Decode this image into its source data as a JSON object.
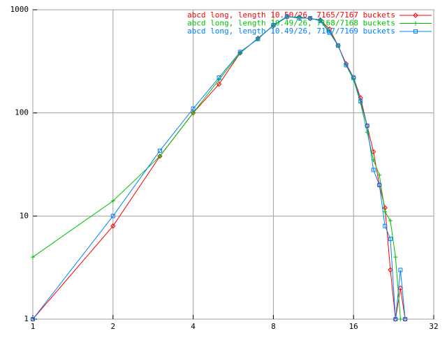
{
  "chart_data": {
    "type": "line",
    "xscale": "log",
    "yscale": "log",
    "grid": true,
    "legend": "top-right",
    "x": [
      1,
      2,
      3,
      4,
      5,
      6,
      7,
      8,
      9,
      10,
      11,
      12,
      13,
      14,
      15,
      16,
      17,
      18,
      19,
      20,
      21,
      22,
      23,
      24,
      25
    ],
    "xlim": [
      1,
      32
    ],
    "xticks": [
      1,
      2,
      4,
      8,
      16,
      32
    ],
    "ylim": [
      1,
      1000
    ],
    "yticks": [
      1,
      10,
      100,
      1000
    ],
    "series": [
      {
        "name": "abcd long, length 10.50/26, 7165/7167 buckets",
        "color": "#ff0000",
        "marker": "diamond",
        "values": [
          1,
          8,
          38,
          100,
          190,
          380,
          530,
          700,
          850,
          850,
          820,
          800,
          650,
          450,
          300,
          220,
          140,
          75,
          42,
          20,
          12,
          3,
          1,
          2,
          1
        ]
      },
      {
        "name": "abcd long, length 10.49/26, 7168/7168 buckets",
        "color": "#00c000",
        "marker": "plus",
        "values": [
          4,
          14,
          38,
          100,
          210,
          380,
          530,
          700,
          850,
          850,
          820,
          800,
          620,
          450,
          290,
          210,
          125,
          65,
          35,
          25,
          11,
          9,
          4,
          1,
          null
        ]
      },
      {
        "name": "abcd long, length 10.49/26, 7167/7169 buckets",
        "color": "#0080ff",
        "marker": "square",
        "values": [
          1,
          10,
          43,
          110,
          220,
          390,
          520,
          710,
          860,
          830,
          830,
          780,
          600,
          450,
          290,
          220,
          130,
          75,
          28,
          20,
          8,
          6,
          1,
          3,
          1
        ]
      }
    ]
  }
}
